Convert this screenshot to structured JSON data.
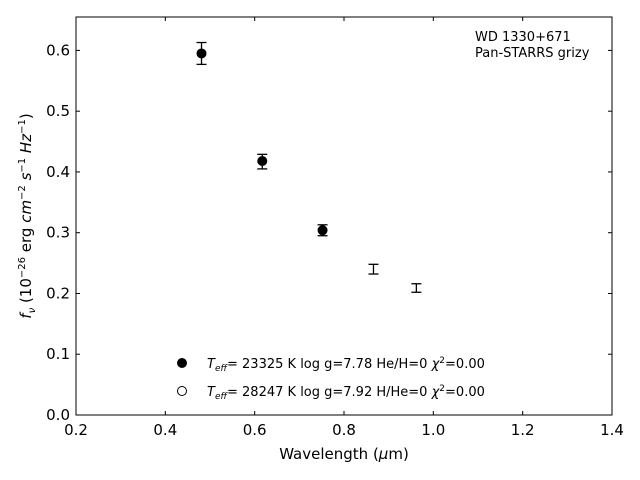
{
  "chart_data": {
    "type": "scatter",
    "xlabel": "Wavelength (μm)",
    "ylabel": "f_ν (10^-26 erg cm^-2 s^-1 Hz^-1)",
    "xlim": [
      0.2,
      1.4
    ],
    "ylim": [
      0.0,
      0.655
    ],
    "xticks": [
      "0.2",
      "0.4",
      "0.6",
      "0.8",
      "1.0",
      "1.2",
      "1.4"
    ],
    "yticks": [
      "0.0",
      "0.1",
      "0.2",
      "0.3",
      "0.4",
      "0.5",
      "0.6"
    ],
    "annotation": {
      "line1": "WD 1330+671",
      "line2": "Pan-STARRS grizy"
    },
    "observed": [
      {
        "x": 0.481,
        "y": 0.595,
        "err": 0.018
      },
      {
        "x": 0.617,
        "y": 0.417,
        "err": 0.012
      },
      {
        "x": 0.752,
        "y": 0.304,
        "err": 0.009
      },
      {
        "x": 0.866,
        "y": 0.24,
        "err": 0.008
      },
      {
        "x": 0.962,
        "y": 0.209,
        "err": 0.007
      }
    ],
    "series": [
      {
        "name": "Teff= 23325 K  log g=7.78  He/H=0  χ2=0.00",
        "marker": "filled-circle",
        "x": [
          0.481,
          0.617,
          0.752
        ],
        "y": [
          0.595,
          0.418,
          0.304
        ]
      },
      {
        "name": "Teff= 28247 K  log g=7.92  H/He=0  χ2=0.00",
        "marker": "open-circle",
        "x": [],
        "y": []
      }
    ],
    "legend": {
      "placement": "lower-center",
      "entries": [
        {
          "teff": "= 23325 K",
          "rest": "log g=7.78  He/H=0",
          "chi": "=0.00"
        },
        {
          "teff": "= 28247 K",
          "rest": "log g=7.92  H/He=0",
          "chi": "=0.00"
        }
      ]
    },
    "grid": false
  }
}
